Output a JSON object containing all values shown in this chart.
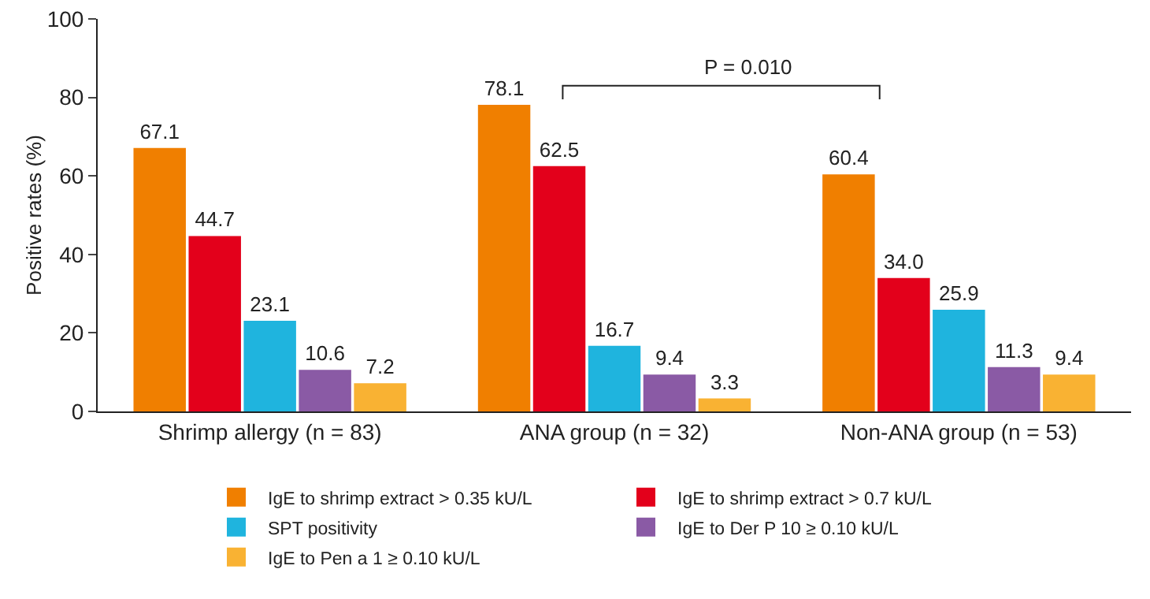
{
  "chart_data": {
    "type": "bar",
    "ylabel": "Positive rates (%)",
    "categories": [
      "Shrimp allergy (n = 83)",
      "ANA group (n = 32)",
      "Non-ANA group (n = 53)"
    ],
    "series": [
      {
        "name": "IgE to shrimp extract > 0.35 kU/L",
        "color": "#f07f00",
        "values": [
          67.1,
          78.1,
          60.4
        ],
        "value_labels": [
          "67.1",
          "78.1",
          "60.4"
        ]
      },
      {
        "name": "IgE to shrimp extract > 0.7 kU/L",
        "color": "#e3001b",
        "values": [
          44.7,
          62.5,
          34.0
        ],
        "value_labels": [
          "44.7",
          "62.5",
          "34.0"
        ]
      },
      {
        "name": "SPT positivity",
        "color": "#1fb4de",
        "values": [
          23.1,
          16.7,
          25.9
        ],
        "value_labels": [
          "23.1",
          "16.7",
          "25.9"
        ]
      },
      {
        "name": "IgE to Der P 10 ≥ 0.10 kU/L",
        "color": "#8a5aa5",
        "values": [
          10.6,
          9.4,
          11.3
        ],
        "value_labels": [
          "10.6",
          "9.4",
          "11.3"
        ]
      },
      {
        "name": "IgE to Pen a 1 ≥ 0.10 kU/L",
        "color": "#f9b233",
        "values": [
          7.2,
          3.3,
          9.4
        ],
        "value_labels": [
          "7.2",
          "3.3",
          "9.4"
        ]
      }
    ],
    "ylim": [
      0,
      100
    ],
    "yticks": [
      0,
      20,
      40,
      60,
      80,
      100
    ],
    "grid": false,
    "legend": "bottom",
    "annotations": [
      "P = 0.010"
    ]
  }
}
